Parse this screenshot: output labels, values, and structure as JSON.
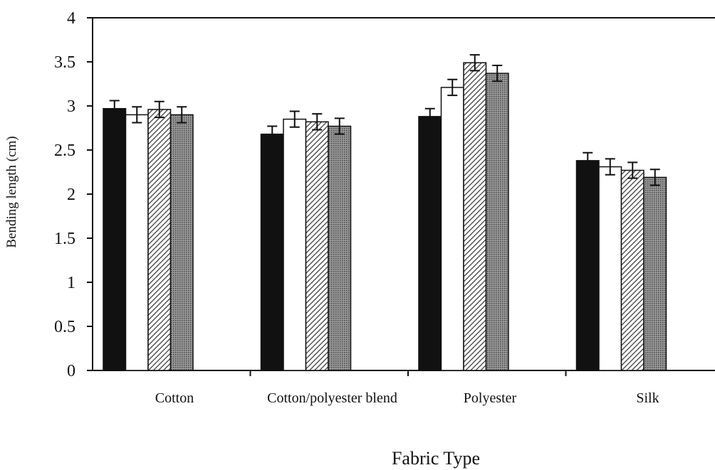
{
  "chart_data": {
    "type": "bar",
    "x_label": "Fabric Type",
    "y_label": "Bending length (cm)",
    "categories": [
      "Cotton",
      "Cotton/polyester blend",
      "Polyester",
      "Silk"
    ],
    "series": [
      {
        "color": "#111111",
        "values": [
          2.97,
          2.68,
          2.88,
          2.38
        ],
        "errors": [
          0.09,
          0.09,
          0.09,
          0.09
        ]
      },
      {
        "color": "#ffffff",
        "values": [
          2.9,
          2.85,
          3.21,
          2.31
        ],
        "errors": [
          0.09,
          0.09,
          0.09,
          0.09
        ]
      },
      {
        "color": "#555555",
        "values": [
          2.96,
          2.82,
          3.49,
          2.27
        ],
        "errors": [
          0.09,
          0.09,
          0.09,
          0.09
        ]
      },
      {
        "color": "#777777",
        "values": [
          2.9,
          2.77,
          3.37,
          2.19
        ],
        "errors": [
          0.09,
          0.09,
          0.09,
          0.09
        ]
      }
    ],
    "ylim": [
      0,
      4
    ],
    "yticks": [
      0,
      0.5,
      1,
      1.5,
      2,
      2.5,
      3,
      3.5,
      4
    ]
  }
}
